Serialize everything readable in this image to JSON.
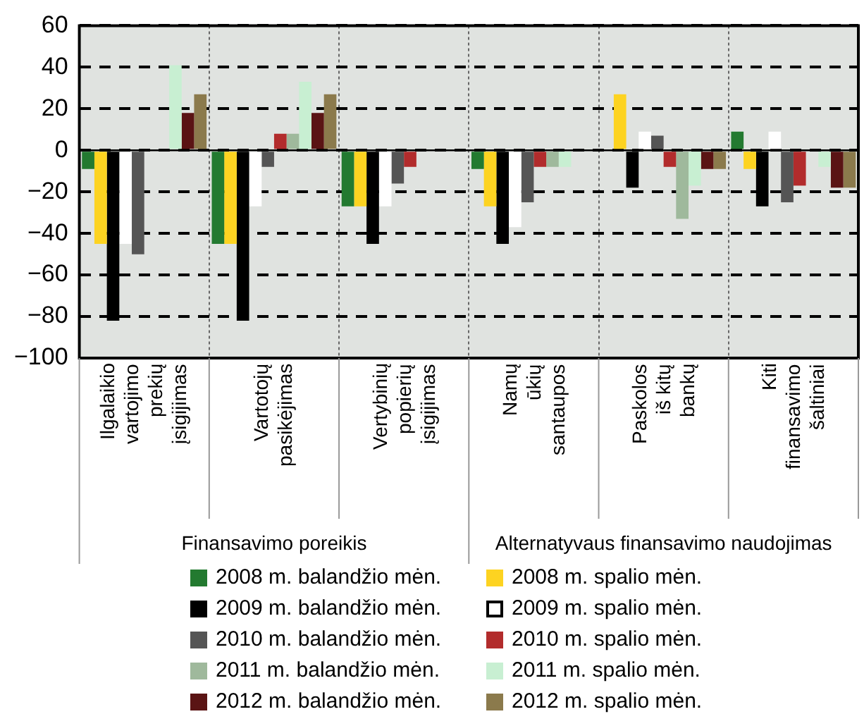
{
  "chart_data": {
    "type": "bar",
    "categories": [
      "Ilgalaikio vartojimo prekių įsigijimas",
      "Vartotojų pasikėjimas",
      "Vertybinių popierių įsigijimas",
      "Namų ūkių santaupos",
      "Paskolos iš kitų bankų",
      "Kiti finansavimo šaltiniai"
    ],
    "series": [
      {
        "name": "2008 m. balandžio mėn.",
        "color": "#237a30",
        "values": [
          -9,
          -45,
          -27,
          -9,
          0,
          9
        ]
      },
      {
        "name": "2008 m. spalio mėn.",
        "color": "#fdd321",
        "values": [
          -45,
          -45,
          -27,
          -27,
          27,
          -9
        ]
      },
      {
        "name": "2009 m. balandžio mėn.",
        "color": "#000000",
        "values": [
          -82,
          -82,
          -45,
          -45,
          -18,
          -27
        ]
      },
      {
        "name": "2009 m. spalio mėn.",
        "color": "#ffffff",
        "values": [
          -45,
          -27,
          -27,
          -37,
          9,
          9
        ]
      },
      {
        "name": "2010 m. balandžio mėn.",
        "color": "#555555",
        "values": [
          -50,
          -8,
          -16,
          -25,
          7,
          -25
        ]
      },
      {
        "name": "2010 m. spalio mėn.",
        "color": "#b22c2c",
        "values": [
          0,
          8,
          -8,
          -8,
          -8,
          -17
        ]
      },
      {
        "name": "2011 m. balandžio mėn.",
        "color": "#9fb99c",
        "values": [
          0,
          8,
          0,
          -8,
          -33,
          0
        ]
      },
      {
        "name": "2011 m. spalio mėn.",
        "color": "#c8efd2",
        "values": [
          41,
          33,
          0,
          -8,
          -17,
          -8
        ]
      },
      {
        "name": "2012 m. balandžio mėn.",
        "color": "#5a1414",
        "values": [
          18,
          18,
          0,
          0,
          -9,
          -18
        ]
      },
      {
        "name": "2012 m. spalio mėn.",
        "color": "#8b7a4c",
        "values": [
          27,
          27,
          0,
          0,
          -9,
          -18
        ]
      }
    ],
    "annotations": [
      "Finansavimo poreikis",
      "Alternatyvaus finansavimo naudojimas"
    ],
    "ylim": [
      -100,
      60
    ],
    "yticks": [
      -100,
      -80,
      -60,
      -40,
      -20,
      0,
      20,
      40,
      60
    ],
    "grid": "y",
    "legend": "bottom"
  }
}
